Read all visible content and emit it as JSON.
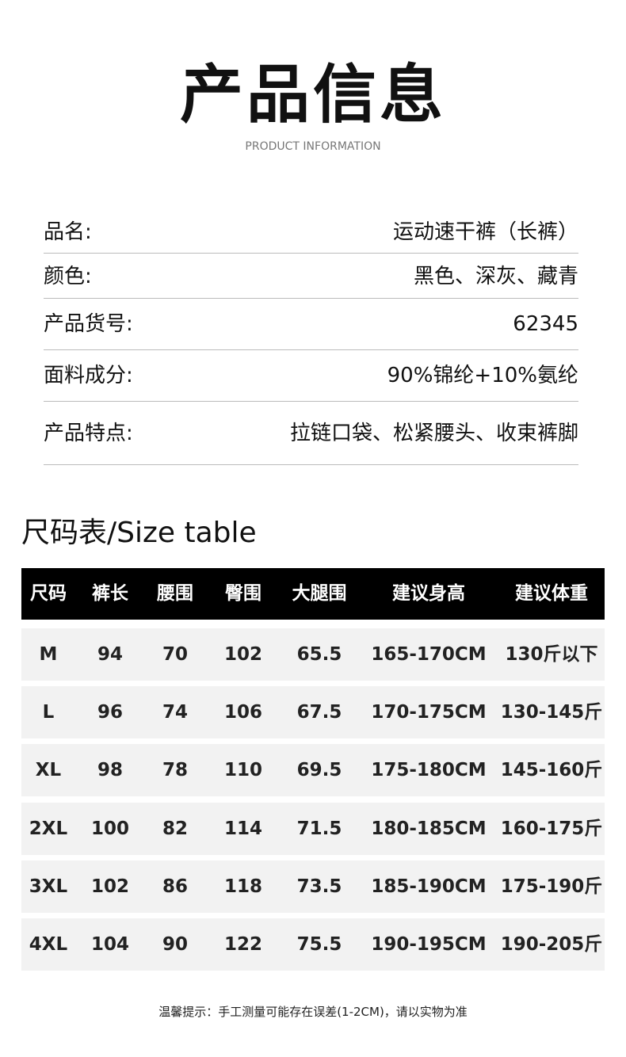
{
  "header": {
    "title": "产品信息",
    "subtitle": "PRODUCT INFORMATION"
  },
  "info": [
    {
      "label": "品名:",
      "value": "运动速干裤（长裤）"
    },
    {
      "label": "颜色:",
      "value": "黑色、深灰、藏青"
    },
    {
      "label": "产品货号:",
      "value": "62345"
    },
    {
      "label": "面料成分:",
      "value": "90%锦纶+10%氨纶"
    },
    {
      "label": "产品特点:",
      "value": "拉链口袋、松紧腰头、收束裤脚"
    }
  ],
  "size_table": {
    "title": "尺码表/Size table",
    "columns": [
      "尺码",
      "裤长",
      "腰围",
      "臀围",
      "大腿围",
      "建议身高",
      "建议体重"
    ],
    "rows": [
      [
        "M",
        "94",
        "70",
        "102",
        "65.5",
        "165-170CM",
        "130斤以下"
      ],
      [
        "L",
        "96",
        "74",
        "106",
        "67.5",
        "170-175CM",
        "130-145斤"
      ],
      [
        "XL",
        "98",
        "78",
        "110",
        "69.5",
        "175-180CM",
        "145-160斤"
      ],
      [
        "2XL",
        "100",
        "82",
        "114",
        "71.5",
        "180-185CM",
        "160-175斤"
      ],
      [
        "3XL",
        "102",
        "86",
        "118",
        "73.5",
        "185-190CM",
        "175-190斤"
      ],
      [
        "4XL",
        "104",
        "90",
        "122",
        "75.5",
        "190-195CM",
        "190-205斤"
      ]
    ]
  },
  "note": "温馨提示：手工测量可能存在误差(1-2CM)，请以实物为准"
}
